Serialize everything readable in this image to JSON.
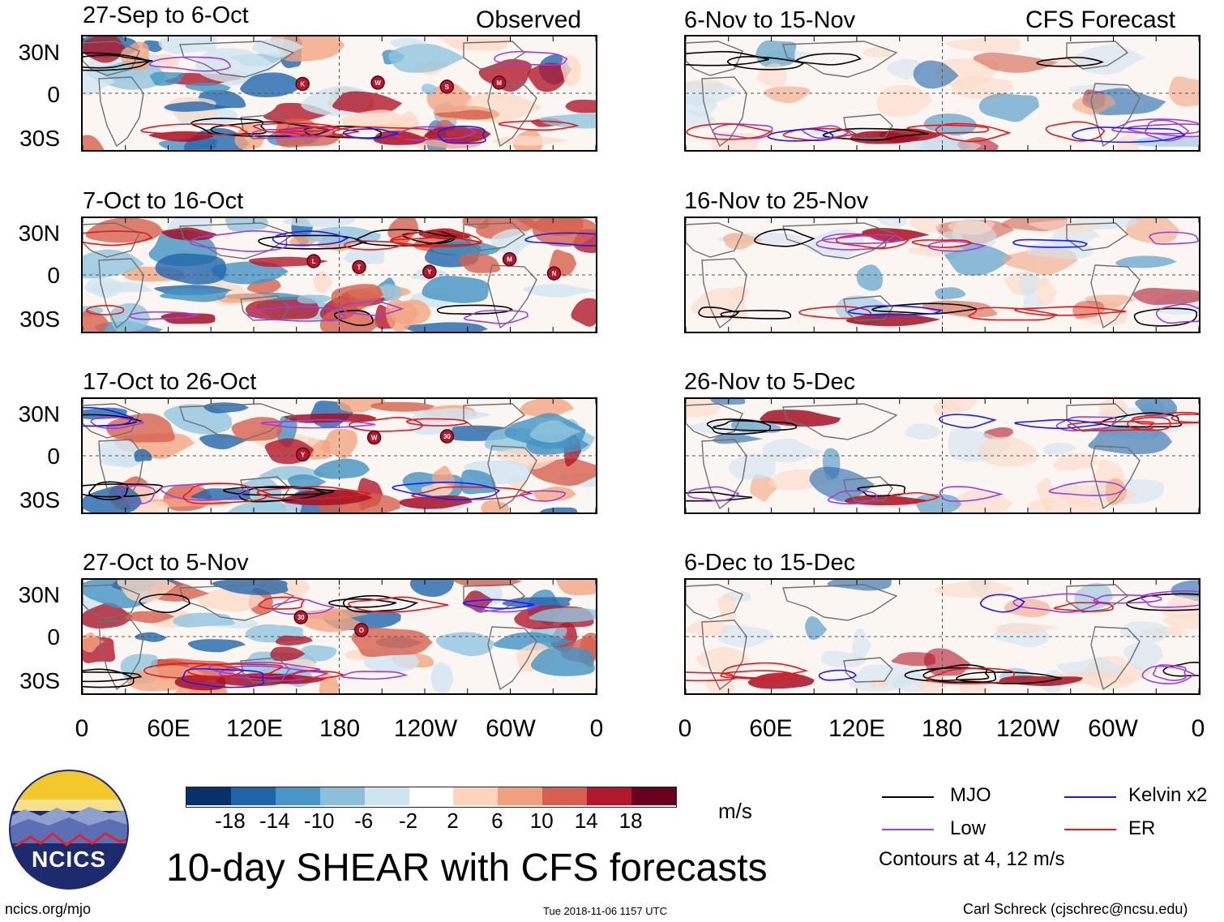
{
  "columns": [
    {
      "header": "Observed",
      "panels": [
        "27-Sep to 6-Oct",
        "7-Oct to 16-Oct",
        "17-Oct to 26-Oct",
        "27-Oct to 5-Nov"
      ]
    },
    {
      "header": "CFS Forecast",
      "panels": [
        "6-Nov to 15-Nov",
        "16-Nov to 25-Nov",
        "26-Nov to 5-Dec",
        "6-Dec to 15-Dec"
      ]
    }
  ],
  "lat_labels": [
    "30N",
    "0",
    "30S"
  ],
  "lon_labels": [
    "0",
    "60E",
    "120E",
    "180",
    "120W",
    "60W",
    "0"
  ],
  "storm_markers": [
    [
      "K",
      "W",
      "S",
      "M"
    ],
    [
      "L",
      "T",
      "Y",
      "M",
      "N"
    ],
    [
      "Y",
      "W",
      "30"
    ],
    [
      "30",
      "O"
    ]
  ],
  "colorbar": {
    "ticks": [
      "-18",
      "-14",
      "-10",
      "-6",
      "-2",
      "2",
      "6",
      "10",
      "14",
      "18"
    ],
    "colors": [
      "#08306b",
      "#1f63a8",
      "#4a95c8",
      "#8dbfdd",
      "#cfe4f1",
      "#ffffff",
      "#fcd3bc",
      "#f0a07e",
      "#d6604d",
      "#b2182b",
      "#67001f"
    ],
    "unit": "m/s"
  },
  "title": "10-day SHEAR with CFS forecasts",
  "legend": {
    "items": [
      {
        "label": "MJO",
        "color": "#000000"
      },
      {
        "label": "Kelvin x2",
        "color": "#1a1aff"
      },
      {
        "label": "Low",
        "color": "#a23ddb"
      },
      {
        "label": "ER",
        "color": "#e31a1c"
      }
    ],
    "note": "Contours at 4, 12 m/s"
  },
  "logo": {
    "text": "NCICS"
  },
  "footer": {
    "url": "ncics.org/mjo",
    "timestamp": "Tue 2018-11-06 1157 UTC",
    "credit": "Carl Schreck (cjschrec@ncsu.edu)"
  }
}
